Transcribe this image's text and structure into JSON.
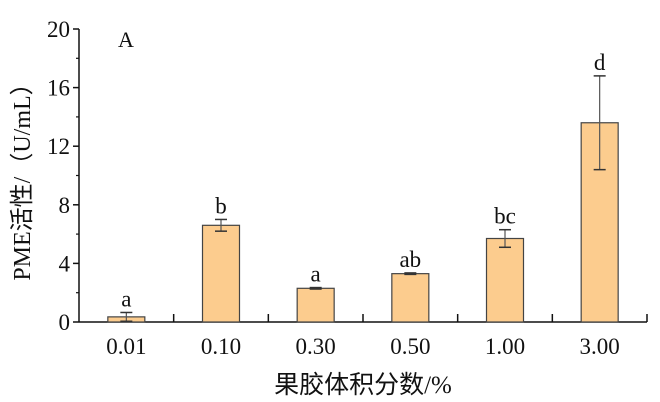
{
  "chart_data": {
    "type": "bar",
    "panel_label": "A",
    "categories": [
      "0.01",
      "0.10",
      "0.30",
      "0.50",
      "1.00",
      "3.00"
    ],
    "values": [
      0.35,
      6.6,
      2.3,
      3.3,
      5.7,
      13.6
    ],
    "errors": [
      0.3,
      0.4,
      0.05,
      0.05,
      0.6,
      3.2
    ],
    "significance_letters": [
      "a",
      "b",
      "a",
      "ab",
      "bc",
      "d"
    ],
    "xlabel": "果胶体积分数/%",
    "ylabel": "PME活性/（U/mL）",
    "ylim": [
      0,
      20
    ],
    "yticks": [
      "0",
      "4",
      "8",
      "12",
      "16",
      "20"
    ],
    "grid": false,
    "bar_color": "#FCCC8E",
    "bar_edge_color": "#444444"
  }
}
